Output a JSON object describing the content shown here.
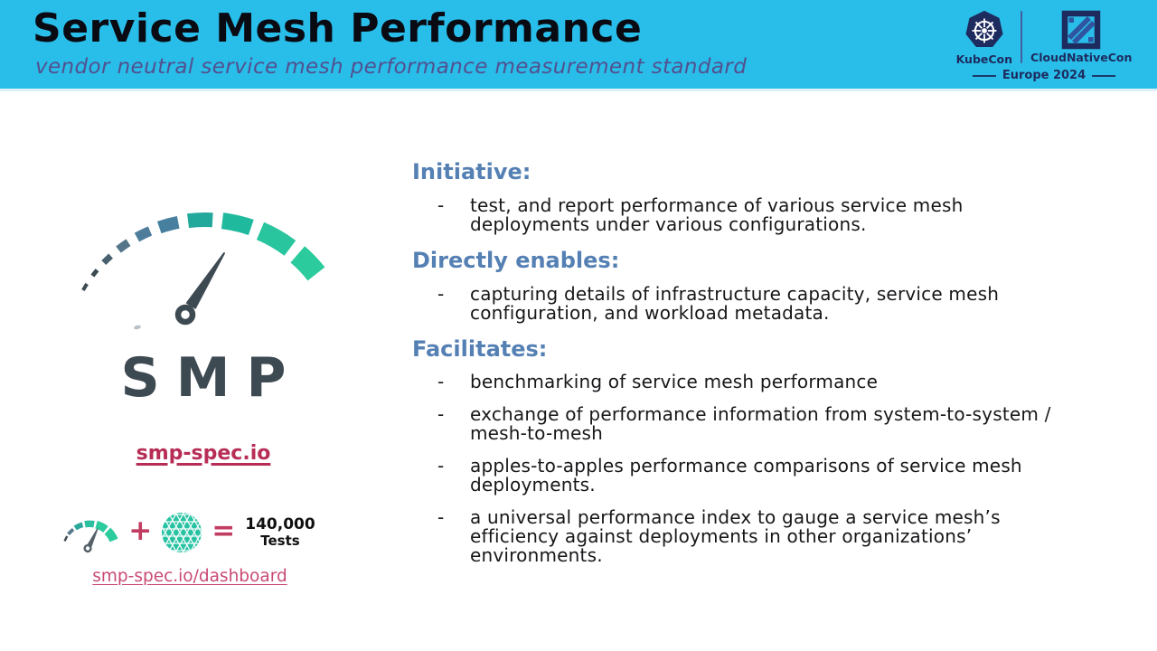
{
  "header": {
    "title": "Service Mesh Performance",
    "subtitle": "vendor neutral service mesh performance measurement standard",
    "conference": {
      "left_name": "KubeCon",
      "right_name": "CloudNativeCon",
      "event": "Europe 2024"
    }
  },
  "left": {
    "logo_text": "SMP",
    "link_primary": "smp-spec.io",
    "equation": {
      "plus": "+",
      "equals": "=",
      "result_value": "140,000",
      "result_label": "Tests"
    },
    "link_dashboard": "smp-spec.io/dashboard"
  },
  "bullet_char": "-",
  "sections": [
    {
      "heading": "Initiative:",
      "bullets": [
        "test, and report performance of various service mesh deployments under various configurations."
      ]
    },
    {
      "heading": "Directly enables:",
      "bullets": [
        "capturing details of infrastructure capacity, service mesh configuration, and workload metadata."
      ]
    },
    {
      "heading": "Facilitates:",
      "bullets": [
        "benchmarking of service mesh performance",
        "exchange of performance information from system-to-system / mesh-to-mesh",
        "apples-to-apples performance comparisons of service mesh deployments.",
        "a universal performance index to gauge a service mesh’s efficiency against deployments in other organizations’ environments."
      ]
    }
  ],
  "colors": {
    "header_bg": "#29bde9",
    "title": "#0a0a12",
    "subtitle": "#52508f",
    "navy": "#1d2b5e",
    "navy_mid": "#2f55a0",
    "heading_blue": "#5580b4",
    "body_text": "#17171a",
    "charcoal": "#3e4a52",
    "link_primary": "#b72d56",
    "link_dashboard": "#c94a72",
    "operator": "#c23b60",
    "teal": "#26c2a2",
    "emerald": "#2bcb9e",
    "slate_blue": "#4e7d9c"
  }
}
